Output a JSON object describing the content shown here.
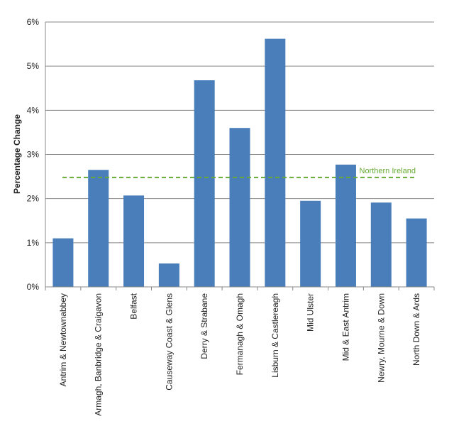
{
  "chart_data": {
    "type": "bar",
    "title": "",
    "xlabel": "",
    "ylabel": "Percentage Change",
    "ylim": [
      0,
      6
    ],
    "yticks": [
      "0%",
      "1%",
      "2%",
      "3%",
      "4%",
      "5%",
      "6%"
    ],
    "grid": true,
    "categories": [
      "Antrim & Newtownabbey",
      "Armagh, Banbridge & Craigavon",
      "Belfast",
      "Causeway Coast & Glens",
      "Derry & Strabane",
      "Fermanagh & Omagh",
      "Lisburn & Castlereagh",
      "Mid Ulster",
      "Mid & East Antrim",
      "Newry, Mourne & Down",
      "North Down & Ards"
    ],
    "values": [
      1.1,
      2.65,
      2.07,
      0.53,
      4.68,
      3.6,
      5.62,
      1.95,
      2.77,
      1.91,
      1.55
    ],
    "reference_line": {
      "label": "Northern Ireland",
      "value": 2.48
    },
    "colors": {
      "bar": "#4a7ebb",
      "reference": "#66aa33",
      "grid": "#888888"
    }
  }
}
